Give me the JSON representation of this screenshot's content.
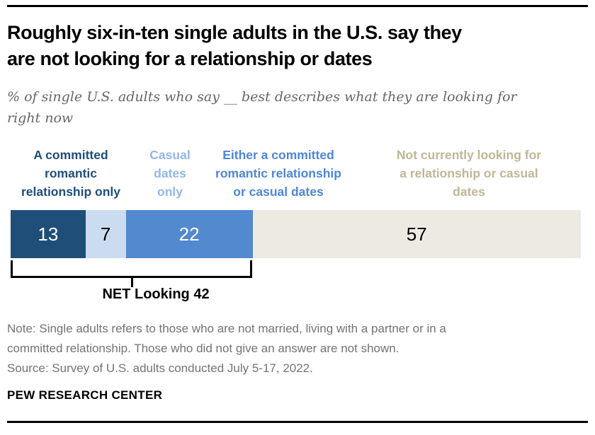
{
  "header": {
    "title": "Roughly six-in-ten single adults in the U.S. say they\nare not looking for a relationship or dates",
    "subtitle": "% of single U.S. adults who say __ best describes what they are looking for\nright now"
  },
  "chart_data": {
    "type": "bar",
    "orientation": "horizontal",
    "stacked": true,
    "unit": "percent",
    "axis_range": [
      0,
      100
    ],
    "title": "Roughly six-in-ten single adults in the U.S. say they are not looking for a relationship or dates",
    "subtitle": "% of single U.S. adults who say __ best describes what they are looking for right now",
    "segments": [
      {
        "label": "A committed\nromantic\nrelationship only",
        "value": 13,
        "color": "#1F4E79",
        "label_color": "#1F4E79",
        "value_color": "#ffffff"
      },
      {
        "label": "Casual\ndates\nonly",
        "value": 7,
        "color": "#CBDCF0",
        "label_color": "#92B7E8",
        "value_color": "#000000"
      },
      {
        "label": "Either a committed\nromantic relationship\nor casual dates",
        "value": 22,
        "color": "#5289CF",
        "label_color": "#4E86D8",
        "value_color": "#ffffff"
      },
      {
        "label": "Not currently looking for\na relationship or casual\ndates",
        "value": 57,
        "color": "#EDEAE2",
        "label_color": "#BFB794",
        "value_color": "#000000"
      }
    ],
    "net": {
      "name": "NET Looking",
      "value": 42,
      "label": "NET Looking 42"
    }
  },
  "footer": {
    "note": "Note: Single adults refers to those who are not married, living with a partner or in a\ncommitted relationship. Those who did not give an answer are not shown.",
    "source": "Source: Survey of U.S. adults conducted July 5-17, 2022.",
    "brand": "PEW RESEARCH CENTER"
  }
}
